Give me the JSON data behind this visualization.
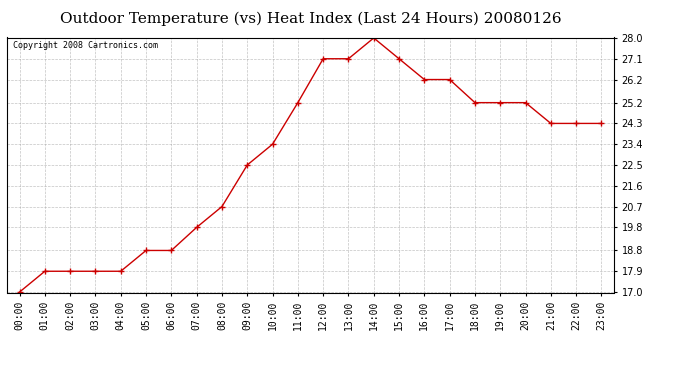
{
  "title": "Outdoor Temperature (vs) Heat Index (Last 24 Hours) 20080126",
  "copyright": "Copyright 2008 Cartronics.com",
  "x_labels": [
    "00:00",
    "01:00",
    "02:00",
    "03:00",
    "04:00",
    "05:00",
    "06:00",
    "07:00",
    "08:00",
    "09:00",
    "10:00",
    "11:00",
    "12:00",
    "13:00",
    "14:00",
    "15:00",
    "16:00",
    "17:00",
    "18:00",
    "19:00",
    "20:00",
    "21:00",
    "22:00",
    "23:00"
  ],
  "y_values": [
    17.0,
    17.9,
    17.9,
    17.9,
    17.9,
    18.8,
    18.8,
    19.8,
    20.7,
    22.5,
    23.4,
    25.2,
    27.1,
    27.1,
    28.0,
    27.1,
    26.2,
    26.2,
    25.2,
    25.2,
    25.2,
    24.3,
    24.3,
    24.3
  ],
  "y_ticks": [
    17.0,
    17.9,
    18.8,
    19.8,
    20.7,
    21.6,
    22.5,
    23.4,
    24.3,
    25.2,
    26.2,
    27.1,
    28.0
  ],
  "y_min": 17.0,
  "y_max": 28.0,
  "line_color": "#cc0000",
  "marker": "+",
  "marker_size": 5,
  "marker_linewidth": 1.0,
  "line_width": 1.0,
  "grid_color": "#aaaaaa",
  "bg_color": "#ffffff",
  "plot_bg_color": "#ffffff",
  "title_fontsize": 11,
  "copyright_fontsize": 6,
  "tick_fontsize": 7,
  "x_tick_fontsize": 7
}
